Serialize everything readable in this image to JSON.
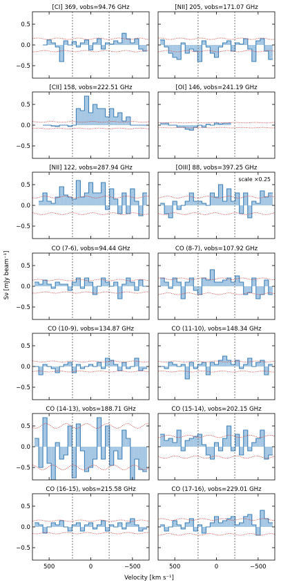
{
  "figure": {
    "ylabel": "Sν [mJy beam⁻¹]",
    "xlabel": "Velocity [km s⁻¹]",
    "colors": {
      "fill": "#a6c8e4",
      "line": "#3f7fb4",
      "noise": "#d0403c",
      "vline": "#555555",
      "frame": "#000000"
    }
  },
  "chart_data": [
    {
      "type": "bar",
      "title": "[CI] 369, νobs=94.76 GHz",
      "x": [
        550,
        500,
        450,
        400,
        350,
        300,
        250,
        200,
        150,
        100,
        50,
        0,
        -50,
        -100,
        -150,
        -200,
        -250,
        -300,
        -350,
        -400,
        -450,
        -500,
        -550,
        -600,
        -650
      ],
      "values": [
        0.0,
        0.12,
        0.05,
        -0.05,
        -0.4,
        0.1,
        0.0,
        0.08,
        -0.05,
        0.05,
        0.12,
        -0.12,
        0.05,
        0.15,
        -0.1,
        0.05,
        0.02,
        0.1,
        0.05,
        0.28,
        0.15,
        0.05,
        0.15,
        -0.1,
        -0.15
      ],
      "noise": 0.15,
      "xlim": [
        700,
        -700
      ],
      "ylim": [
        -0.8,
        0.8
      ],
      "vlines": [
        -220,
        220
      ]
    },
    {
      "type": "bar",
      "title": "[NII] 205, νobs=171.07 GHz",
      "x": [
        650,
        600,
        550,
        500,
        450,
        400,
        350,
        300,
        250,
        200,
        150,
        100,
        50,
        0,
        -50,
        -100,
        -150,
        -200,
        -250,
        -300,
        -350,
        -400,
        -450,
        -500,
        -550,
        -600,
        -650
      ],
      "values": [
        0.12,
        -0.05,
        -0.2,
        -0.3,
        -0.35,
        0.05,
        -0.2,
        -0.1,
        -0.15,
        -0.4,
        0.1,
        -0.05,
        -0.2,
        -0.3,
        -0.05,
        0.05,
        0.1,
        -0.15,
        0.05,
        0.02,
        0.15,
        -0.1,
        -0.4,
        0.1,
        0.15,
        -0.15,
        -0.35
      ],
      "noise": 0.15,
      "xlim": [
        700,
        -700
      ],
      "ylim": [
        -0.8,
        0.8
      ],
      "vlines": [
        -220,
        220
      ]
    },
    {
      "type": "bar",
      "title": "[CII] 158, νobs=222.51 GHz",
      "x": [
        550,
        500,
        450,
        400,
        350,
        300,
        250,
        200,
        150,
        100,
        50,
        0,
        -50,
        -100,
        -150,
        -200,
        -250,
        -300,
        -350,
        -400,
        -450,
        -500,
        -550,
        -600,
        -650
      ],
      "values": [
        0.0,
        0.0,
        -0.02,
        -0.03,
        0.0,
        0.0,
        -0.03,
        0.0,
        0.4,
        0.35,
        0.7,
        0.3,
        0.5,
        0.4,
        0.4,
        0.2,
        0.4,
        0.2,
        0.3,
        0.1,
        0.2,
        0.0,
        0.0,
        0.0,
        0.0
      ],
      "noise": 0.08,
      "xlim": [
        700,
        -700
      ],
      "ylim": [
        -0.8,
        0.8
      ],
      "vlines": [
        -220,
        220
      ]
    },
    {
      "type": "bar",
      "title": "[OI] 146, νobs=241.19 GHz",
      "x": [
        650,
        600,
        550,
        500,
        450,
        400,
        350,
        300,
        250,
        200,
        150,
        100,
        50,
        0,
        -50,
        -100,
        -150
      ],
      "values": [
        0.05,
        0.05,
        0.0,
        0.0,
        -0.05,
        -0.05,
        -0.1,
        -0.12,
        -0.05,
        0.0,
        -0.05,
        0.02,
        0.0,
        0.05,
        0.03,
        0.05,
        0.05
      ],
      "noise": 0.06,
      "xlim": [
        700,
        -700
      ],
      "ylim": [
        -0.8,
        0.8
      ],
      "vlines": [
        -220,
        220
      ]
    },
    {
      "type": "bar",
      "title": "[NII] 122, νobs=287.94 GHz",
      "x": [
        600,
        550,
        500,
        450,
        400,
        350,
        300,
        250,
        200,
        150,
        100,
        50,
        0,
        -50,
        -100,
        -150,
        -200,
        -250,
        -300,
        -350,
        -400,
        -450,
        -500,
        -550,
        -600,
        -650
      ],
      "values": [
        0.1,
        0.3,
        0.1,
        0.05,
        0.2,
        0.45,
        0.25,
        0.2,
        0.15,
        0.6,
        0.2,
        0.3,
        0.55,
        0.3,
        0.3,
        0.55,
        -0.1,
        0.4,
        0.15,
        -0.2,
        0.3,
        -0.2,
        0.4,
        0.1,
        -0.25,
        0.3
      ],
      "noise": 0.2,
      "xlim": [
        700,
        -700
      ],
      "ylim": [
        -0.8,
        0.8
      ],
      "vlines": [
        -220,
        220
      ]
    },
    {
      "type": "bar",
      "title": "[OIII] 88, νobs=397.25 GHz",
      "note": "scale ×0.25",
      "x": [
        650,
        600,
        550,
        500,
        450,
        400,
        350,
        300,
        250,
        200,
        150,
        100,
        50,
        0,
        -50,
        -100,
        -150,
        -200,
        -250,
        -300,
        -350,
        -400,
        -450,
        -500,
        -550,
        -600,
        -650
      ],
      "values": [
        0.05,
        -0.2,
        -0.3,
        0.1,
        -0.1,
        0.0,
        0.1,
        0.3,
        0.1,
        0.1,
        0.05,
        0.0,
        0.3,
        0.2,
        0.5,
        0.1,
        0.4,
        0.1,
        0.3,
        -0.2,
        0.3,
        -0.3,
        0.1,
        0.05,
        0.35,
        0.2,
        0.3
      ],
      "noise": 0.2,
      "xlim": [
        700,
        -700
      ],
      "ylim": [
        -0.8,
        0.8
      ],
      "vlines": [
        -220,
        220
      ]
    },
    {
      "type": "bar",
      "title": "CO (7-6), νobs=94.44 GHz",
      "x": [
        650,
        600,
        550,
        500,
        450,
        400,
        350,
        300,
        250,
        200,
        150,
        100,
        50,
        0,
        -50,
        -100,
        -150,
        -200,
        -250,
        -300,
        -350,
        -400,
        -450,
        -500,
        -550,
        -600,
        -650
      ],
      "values": [
        0.1,
        0.05,
        0.15,
        0.05,
        -0.05,
        0.1,
        0.05,
        0.05,
        -0.1,
        0.1,
        0.2,
        -0.05,
        0.2,
        0.1,
        -0.2,
        0.0,
        0.2,
        0.1,
        0.0,
        0.1,
        -0.3,
        0.05,
        0.2,
        0.1,
        -0.1,
        0.15,
        0.0
      ],
      "noise": 0.15,
      "xlim": [
        700,
        -700
      ],
      "ylim": [
        -0.8,
        0.8
      ],
      "vlines": [
        -220,
        220
      ]
    },
    {
      "type": "bar",
      "title": "CO (8-7), νobs=107.92 GHz",
      "x": [
        650,
        600,
        550,
        500,
        450,
        400,
        350,
        300,
        250,
        200,
        150,
        100,
        50,
        0,
        -50,
        -100,
        -150,
        -200,
        -250,
        -300,
        -350,
        -400,
        -450,
        -500,
        -550,
        -600,
        -650
      ],
      "values": [
        0.2,
        0.1,
        -0.05,
        0.2,
        0.1,
        -0.3,
        0.1,
        0.2,
        -0.1,
        -0.2,
        0.2,
        0.15,
        0.4,
        0.1,
        0.1,
        0.15,
        0.2,
        0.1,
        0.25,
        0.1,
        -0.2,
        -0.15,
        0.2,
        -0.3,
        -0.2,
        0.15,
        -0.2
      ],
      "noise": 0.18,
      "xlim": [
        700,
        -700
      ],
      "ylim": [
        -0.8,
        0.8
      ],
      "vlines": [
        -220,
        220
      ]
    },
    {
      "type": "bar",
      "title": "CO (10-9), νobs=134.87 GHz",
      "x": [
        650,
        600,
        550,
        500,
        450,
        400,
        350,
        300,
        250,
        200,
        150,
        100,
        50,
        0,
        -50,
        -100,
        -150,
        -200,
        -250,
        -300,
        -350,
        -400,
        -450,
        -500,
        -550,
        -600,
        -650
      ],
      "values": [
        0.0,
        -0.2,
        0.05,
        0.0,
        -0.05,
        -0.15,
        0.0,
        0.05,
        0.1,
        -0.15,
        0.05,
        -0.05,
        0.0,
        0.05,
        0.0,
        0.1,
        -0.05,
        0.2,
        0.15,
        0.05,
        -0.1,
        0.1,
        -0.05,
        0.0,
        0.2,
        -0.1,
        -0.05
      ],
      "noise": 0.12,
      "xlim": [
        700,
        -700
      ],
      "ylim": [
        -0.8,
        0.8
      ],
      "vlines": [
        -220,
        220
      ]
    },
    {
      "type": "bar",
      "title": "CO (11-10), νobs=148.34 GHz",
      "x": [
        650,
        600,
        550,
        500,
        450,
        400,
        350,
        300,
        250,
        200,
        150,
        100,
        50,
        0,
        -50,
        -100,
        -150,
        -200,
        -250,
        -300,
        -350,
        -400,
        -450,
        -500,
        -550,
        -600,
        -650
      ],
      "values": [
        0.0,
        -0.05,
        0.1,
        0.05,
        0.0,
        0.05,
        -0.3,
        0.1,
        -0.05,
        0.05,
        0.1,
        -0.2,
        0.1,
        0.05,
        0.15,
        0.25,
        0.15,
        0.05,
        0.15,
        -0.05,
        0.05,
        0.2,
        0.0,
        0.1,
        0.15,
        -0.2,
        0.05
      ],
      "noise": 0.12,
      "xlim": [
        700,
        -700
      ],
      "ylim": [
        -0.8,
        0.8
      ],
      "vlines": [
        -220,
        220
      ]
    },
    {
      "type": "bar",
      "title": "CO (14-13), νobs=188.71 GHz",
      "x": [
        650,
        600,
        550,
        500,
        450,
        400,
        350,
        300,
        250,
        200,
        150,
        100,
        50,
        0,
        -50,
        -100,
        -150,
        -200,
        -250,
        -300,
        -350,
        -400,
        -450,
        -500,
        -550,
        -600,
        -650
      ],
      "values": [
        0.2,
        -0.5,
        0.7,
        -0.4,
        -0.8,
        0.1,
        -0.3,
        -0.2,
        0.5,
        -0.75,
        0.55,
        -0.1,
        -0.6,
        -0.5,
        -0.3,
        0.7,
        -0.3,
        0.5,
        -0.45,
        -0.1,
        -0.3,
        0.4,
        0.2,
        -0.8,
        -0.3,
        -0.55,
        -0.6
      ],
      "noise": 0.5,
      "xlim": [
        700,
        -700
      ],
      "ylim": [
        -0.8,
        0.8
      ],
      "vlines": [
        -220,
        220
      ]
    },
    {
      "type": "bar",
      "title": "CO (15-14), νobs=202.15 GHz",
      "x": [
        650,
        600,
        550,
        500,
        450,
        400,
        350,
        300,
        250,
        200,
        150,
        100,
        50,
        0,
        -50,
        -100,
        -150,
        -200,
        -250,
        -300,
        -350,
        -400,
        -450,
        -500,
        -550,
        -600,
        -650
      ],
      "values": [
        0.3,
        0.15,
        0.2,
        0.1,
        0.4,
        -0.1,
        0.15,
        0.2,
        0.25,
        0.3,
        0.05,
        -0.2,
        -0.3,
        0.1,
        -0.1,
        0.2,
        0.5,
        -0.1,
        0.3,
        -0.2,
        0.4,
        -0.1,
        0.1,
        0.2,
        0.4,
        -0.3,
        -0.2
      ],
      "noise": 0.25,
      "xlim": [
        700,
        -700
      ],
      "ylim": [
        -0.8,
        0.8
      ],
      "vlines": [
        -220,
        220
      ]
    },
    {
      "type": "bar",
      "title": "CO (16-15), νobs=215.58 GHz",
      "x": [
        650,
        600,
        550,
        500,
        450,
        400,
        350,
        300,
        250,
        200,
        150,
        100,
        50,
        0,
        -50,
        -100,
        -150,
        -200,
        -250,
        -300,
        -350,
        -400,
        -450,
        -500,
        -550,
        -600,
        -650
      ],
      "values": [
        0.1,
        0.05,
        -0.15,
        0.0,
        0.1,
        0.05,
        0.15,
        0.0,
        -0.1,
        0.05,
        0.1,
        -0.1,
        0.05,
        0.1,
        -0.05,
        0.05,
        0.15,
        -0.1,
        0.05,
        0.0,
        0.1,
        -0.05,
        0.1,
        0.2,
        0.05,
        -0.1,
        -0.05
      ],
      "noise": 0.15,
      "xlim": [
        700,
        -700
      ],
      "ylim": [
        -0.8,
        0.8
      ],
      "vlines": [
        -220,
        220
      ]
    },
    {
      "type": "bar",
      "title": "CO (17-16), νobs=229.01 GHz",
      "x": [
        650,
        600,
        550,
        500,
        450,
        400,
        350,
        300,
        250,
        200,
        150,
        100,
        50,
        0,
        -50,
        -100,
        -150,
        -200,
        -250,
        -300,
        -350,
        -400,
        -450,
        -500,
        -550,
        -600,
        -650
      ],
      "values": [
        0.05,
        -0.1,
        0.0,
        0.15,
        0.05,
        -0.05,
        0.1,
        0.2,
        -0.1,
        0.05,
        -0.15,
        0.0,
        0.1,
        0.25,
        0.1,
        0.15,
        0.2,
        0.25,
        0.05,
        0.1,
        0.25,
        0.3,
        0.05,
        -0.2,
        0.4,
        0.2,
        0.1
      ],
      "noise": 0.18,
      "xlim": [
        700,
        -700
      ],
      "ylim": [
        -0.8,
        0.8
      ],
      "vlines": [
        -220,
        220
      ]
    }
  ],
  "axes": {
    "yticks": [
      0.5,
      0.0,
      -0.5
    ],
    "ytick_labels": [
      "0.5",
      "0.0",
      "−0.5"
    ],
    "xticks": [
      500,
      0,
      -500
    ],
    "xtick_labels": [
      "500",
      "0",
      "−500"
    ]
  }
}
